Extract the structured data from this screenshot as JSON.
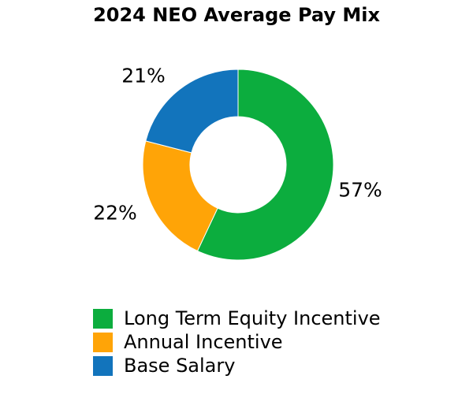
{
  "title": "2024 NEO Average Pay Mix",
  "chart_data": {
    "type": "pie",
    "subtype": "donut",
    "title": "2024 NEO Average Pay Mix",
    "start_angle_deg": 0,
    "direction": "clockwise",
    "inner_radius_ratio": 0.5,
    "legend_position": "bottom-left",
    "series": [
      {
        "name": "Long Term Equity Incentive",
        "value": 57,
        "label": "57%",
        "color": "#0CAD3E"
      },
      {
        "name": "Annual Incentive",
        "value": 22,
        "label": "22%",
        "color": "#FFA407"
      },
      {
        "name": "Base Salary",
        "value": 21,
        "label": "21%",
        "color": "#1274BC"
      }
    ]
  }
}
